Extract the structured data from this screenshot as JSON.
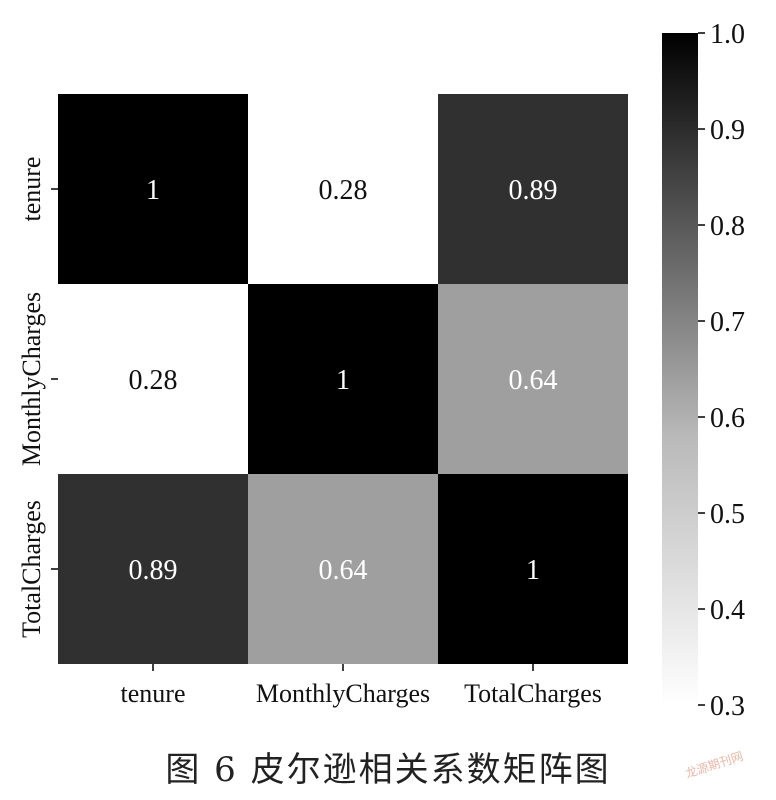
{
  "chart_data": {
    "type": "heatmap",
    "rows": [
      "tenure",
      "MonthlyCharges",
      "TotalCharges"
    ],
    "columns": [
      "tenure",
      "MonthlyCharges",
      "TotalCharges"
    ],
    "values": [
      [
        1,
        0.28,
        0.89
      ],
      [
        0.28,
        1,
        0.64
      ],
      [
        0.89,
        0.64,
        1
      ]
    ],
    "annotations": [
      [
        "1",
        "0.28",
        "0.89"
      ],
      [
        "0.28",
        "1",
        "0.64"
      ],
      [
        "0.89",
        "0.64",
        "1"
      ]
    ],
    "colorbar": {
      "min": 0.3,
      "max": 1.0,
      "ticks": [
        1.0,
        0.9,
        0.8,
        0.7,
        0.6,
        0.5,
        0.4,
        0.3
      ],
      "tick_labels": [
        "1.0",
        "0.9",
        "0.8",
        "0.7",
        "0.6",
        "0.5",
        "0.4",
        "0.3"
      ],
      "colormap": "Greys",
      "color_low": "#ffffff",
      "color_high": "#000000"
    }
  },
  "caption": "图 6   皮尔逊相关系数矩阵图",
  "watermark": "龙源期刊网"
}
